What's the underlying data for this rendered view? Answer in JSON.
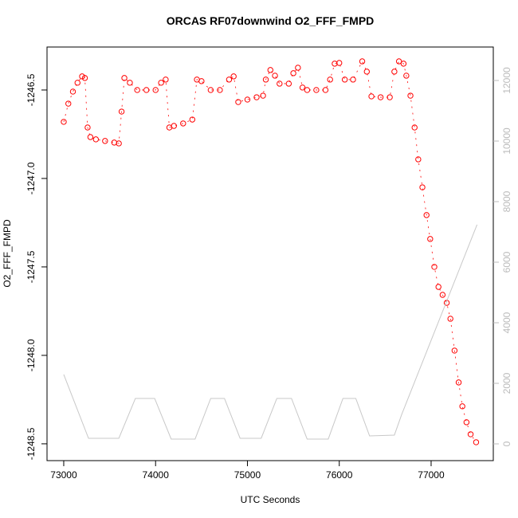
{
  "chart_data": {
    "type": "scatter",
    "title": "ORCAS RF07downwind O2_FFF_FMPD",
    "x_label": "UTC Seconds",
    "y_label": "O2_FFF_FMPD",
    "xlim": [
      72818,
      77677
    ],
    "xticks": [
      73000,
      74000,
      75000,
      76000,
      77000
    ],
    "ylim": [
      -1248.595,
      -1246.257
    ],
    "yticks": [
      {
        "value": -1246.5,
        "label": "-1246.5"
      },
      {
        "value": -1247.0,
        "label": "-1247.0"
      },
      {
        "value": -1247.5,
        "label": "-1247.5"
      },
      {
        "value": -1248.0,
        "label": "-1248.0"
      },
      {
        "value": -1248.5,
        "label": "-1248.5"
      }
    ],
    "y2lim": [
      -553,
      13105
    ],
    "y2ticks": [
      0,
      2000,
      4000,
      6000,
      8000,
      10000,
      12000
    ],
    "series": [
      {
        "color": "#ff0000",
        "marker": "open-circle",
        "x": [
          73000,
          73050,
          73100,
          73150,
          73200,
          73230,
          73260,
          73290,
          73350,
          73450,
          73550,
          73600,
          73630,
          73660,
          73720,
          73800,
          73900,
          74000,
          74060,
          74110,
          74150,
          74200,
          74300,
          74400,
          74450,
          74500,
          74600,
          74700,
          74800,
          74850,
          74900,
          75000,
          75100,
          75170,
          75200,
          75250,
          75300,
          75350,
          75450,
          75500,
          75550,
          75600,
          75650,
          75750,
          75850,
          75900,
          75950,
          76000,
          76060,
          76150,
          76250,
          76300,
          76350,
          76450,
          76550,
          76600,
          76650,
          76700,
          76730,
          76775,
          76820,
          76860,
          76905,
          76950,
          76990,
          77035,
          77080,
          77125,
          77170,
          77210,
          77255,
          77300,
          77340,
          77385,
          77430,
          77490
        ],
        "values": [
          -1246.68,
          -1246.577,
          -1246.509,
          -1246.459,
          -1246.423,
          -1246.432,
          -1246.712,
          -1246.766,
          -1246.779,
          -1246.788,
          -1246.797,
          -1246.802,
          -1246.622,
          -1246.432,
          -1246.459,
          -1246.5,
          -1246.5,
          -1246.5,
          -1246.459,
          -1246.441,
          -1246.712,
          -1246.703,
          -1246.689,
          -1246.667,
          -1246.441,
          -1246.45,
          -1246.5,
          -1246.5,
          -1246.441,
          -1246.423,
          -1246.568,
          -1246.554,
          -1246.541,
          -1246.532,
          -1246.441,
          -1246.387,
          -1246.419,
          -1246.464,
          -1246.464,
          -1246.405,
          -1246.374,
          -1246.486,
          -1246.5,
          -1246.5,
          -1246.5,
          -1246.441,
          -1246.351,
          -1246.347,
          -1246.441,
          -1246.441,
          -1246.338,
          -1246.396,
          -1246.536,
          -1246.541,
          -1246.541,
          -1246.396,
          -1246.338,
          -1246.351,
          -1246.419,
          -1246.532,
          -1246.712,
          -1246.892,
          -1247.05,
          -1247.207,
          -1247.342,
          -1247.5,
          -1247.613,
          -1247.658,
          -1247.703,
          -1247.793,
          -1247.973,
          -1248.153,
          -1248.288,
          -1248.378,
          -1248.446,
          -1248.491
        ]
      },
      {
        "color": "#c8c8c8",
        "axis": "y2",
        "marker": "line",
        "x": [
          73000,
          73270,
          73600,
          73780,
          73990,
          74170,
          74430,
          74600,
          74750,
          74920,
          75150,
          75320,
          75480,
          75650,
          75880,
          76040,
          76180,
          76330,
          76600,
          76680,
          77500
        ],
        "values": [
          2290,
          184,
          184,
          1500,
          1500,
          158,
          158,
          1500,
          1500,
          184,
          184,
          1500,
          1500,
          158,
          158,
          1500,
          1500,
          263,
          290,
          974,
          7237
        ]
      }
    ]
  }
}
